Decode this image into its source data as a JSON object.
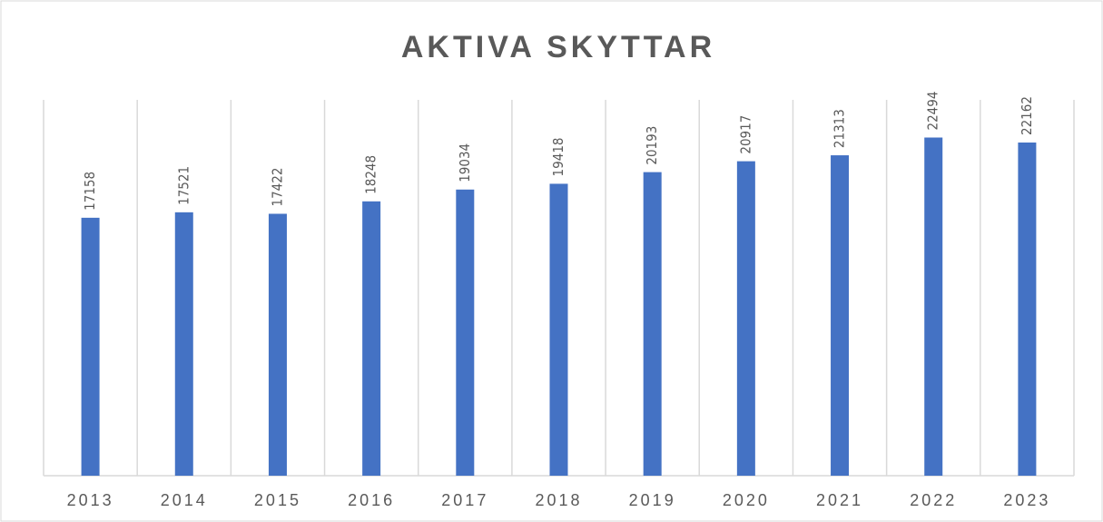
{
  "chart_data": {
    "type": "bar",
    "title": "AKTIVA SKYTTAR",
    "categories": [
      "2013",
      "2014",
      "2015",
      "2016",
      "2017",
      "2018",
      "2019",
      "2020",
      "2021",
      "2022",
      "2023"
    ],
    "values": [
      17158,
      17521,
      17422,
      18248,
      19034,
      19418,
      20193,
      20917,
      21313,
      22494,
      22162
    ],
    "color": "#4472c4",
    "ylim": [
      0,
      25000
    ]
  }
}
